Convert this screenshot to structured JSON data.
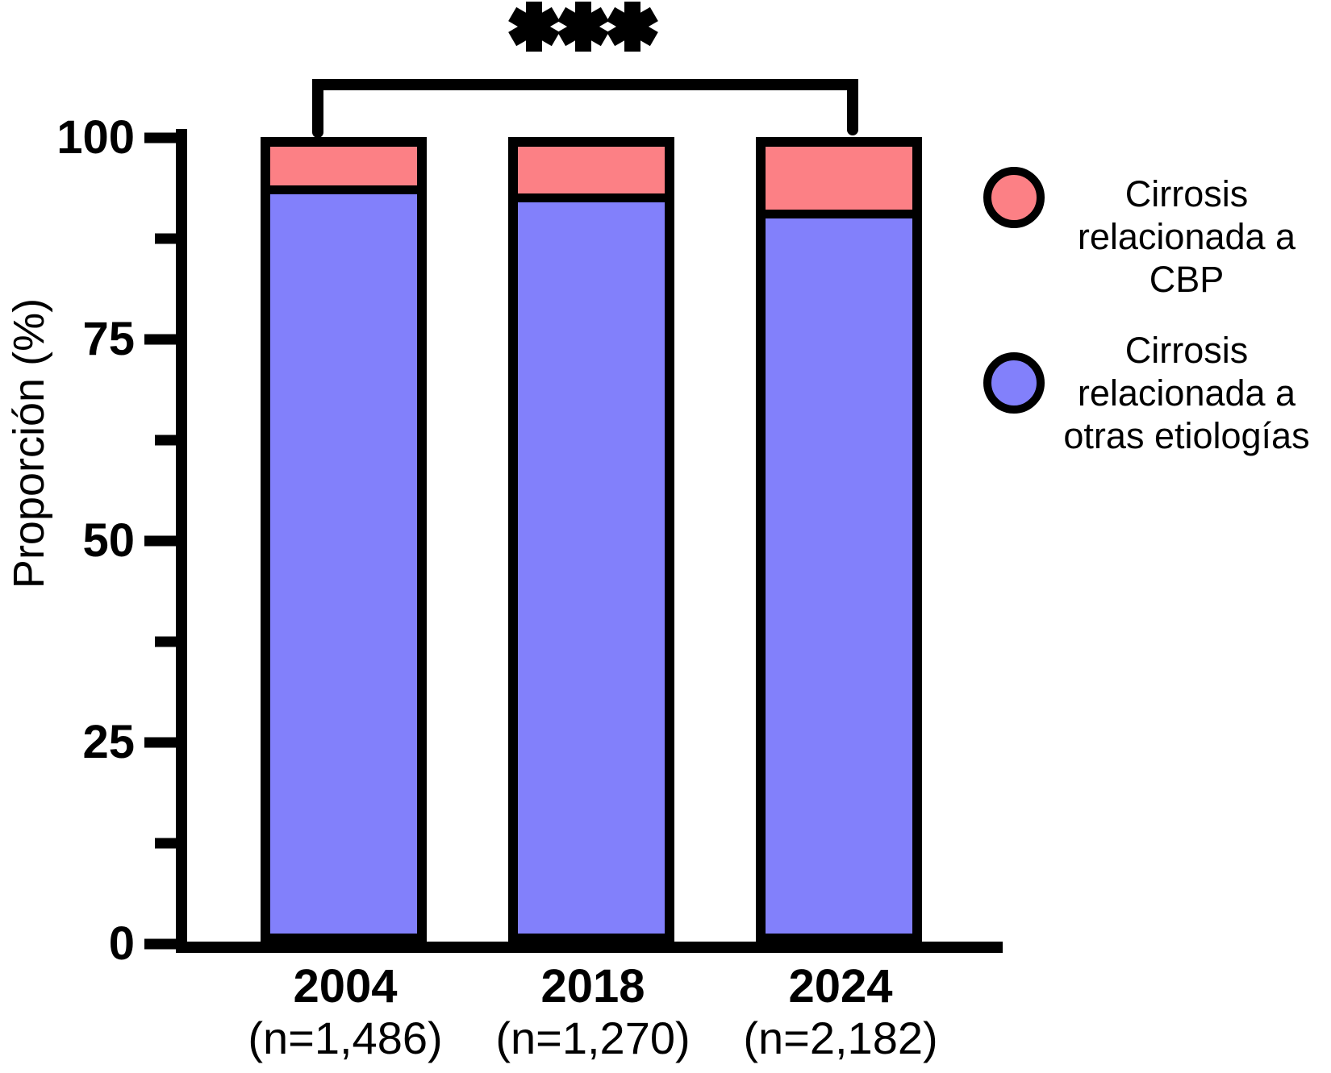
{
  "chart_data": {
    "type": "bar",
    "stacked": true,
    "categories": [
      "2004",
      "2018",
      "2024"
    ],
    "category_sublabels": [
      "(n=1,486)",
      "(n=1,270)",
      "(n=2,182)"
    ],
    "series": [
      {
        "name": "Cirrosis relacionada a CBP",
        "color": "#FC8085",
        "values": [
          6,
          7,
          9
        ]
      },
      {
        "name": "Cirrosis relacionada a otras etiologías",
        "color": "#8280FB",
        "values": [
          94,
          93,
          91
        ]
      }
    ],
    "ylabel": "Proporción (%)",
    "ylim": [
      0,
      100
    ],
    "y_ticks": [
      100,
      75,
      50,
      25,
      0
    ],
    "y_minor_ticks": [
      87.5,
      62.5,
      37.5,
      12.5
    ],
    "grid": false,
    "legend_position": "right",
    "annotation": {
      "label": "***",
      "between": [
        "2004",
        "2024"
      ]
    }
  },
  "legend": {
    "items": [
      {
        "marker": "circle",
        "color": "#FC8085",
        "label_lines": [
          "Cirrosis",
          "relacionada a CBP"
        ]
      },
      {
        "marker": "circle",
        "color": "#8280FB",
        "label_lines": [
          "Cirrosis",
          "relacionada a",
          "otras etiologías"
        ]
      }
    ]
  },
  "axis_color": "#000000"
}
